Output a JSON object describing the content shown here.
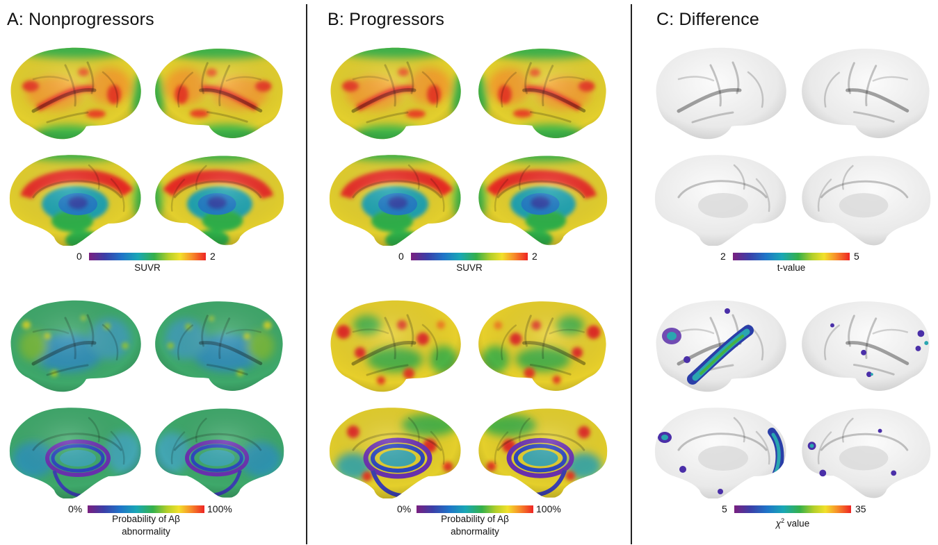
{
  "panels": {
    "a": {
      "title": "A: Nonprogressors",
      "suvr_scale": {
        "min": "0",
        "max": "2",
        "label": "SUVR"
      },
      "prob_scale": {
        "min": "0%",
        "max": "100%",
        "label_line1": "Probability of Aβ",
        "label_line2": "abnormality"
      }
    },
    "b": {
      "title": "B: Progressors",
      "suvr_scale": {
        "min": "0",
        "max": "2",
        "label": "SUVR"
      },
      "prob_scale": {
        "min": "0%",
        "max": "100%",
        "label_line1": "Probability of Aβ",
        "label_line2": "abnormality"
      }
    },
    "c": {
      "title": "C: Difference",
      "t_scale": {
        "min": "2",
        "max": "5",
        "label": "t-value"
      },
      "chi_scale": {
        "min": "5",
        "max": "35",
        "label_symbol": "χ",
        "label_sup": "2",
        "label_rest": " value"
      }
    }
  },
  "colors": {
    "background": "#ffffff",
    "divider": "#222222",
    "colormap": [
      "#7a1f7f",
      "#3b3fa8",
      "#1f74c8",
      "#19a7b5",
      "#35b04a",
      "#b3cf2a",
      "#f2e12b",
      "#f7902a",
      "#ee2424"
    ],
    "blank_surface": "#eeeeee"
  },
  "icons": {
    "brain_surface": "brain-surface-icon"
  }
}
